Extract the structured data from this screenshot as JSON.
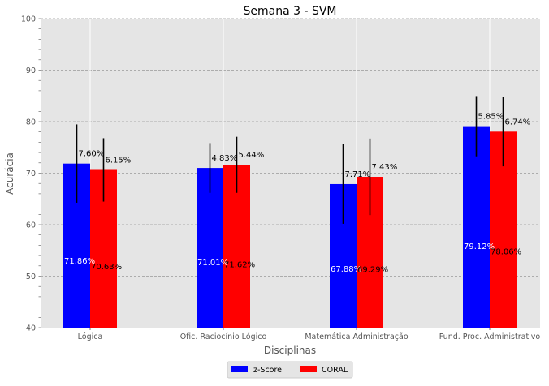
{
  "chart_data": {
    "type": "bar",
    "title": "Semana 3 - SVM",
    "xlabel": "Disciplinas",
    "ylabel": "Acurácia",
    "ylim": [
      40,
      100
    ],
    "yticks": [
      "40",
      "50",
      "60",
      "70",
      "80",
      "90",
      "100"
    ],
    "categories": [
      "Lógica",
      "Ofic. Raciocínio Lógico",
      "Matemática Administração",
      "Fund. Proc. Administrativo"
    ],
    "grid": true,
    "legend_position": "bottom-center",
    "background_color": "#e5e5e5",
    "series": [
      {
        "name": "z-Score",
        "color": "#0000ff",
        "values": [
          71.86,
          71.01,
          67.88,
          79.12
        ],
        "value_labels": [
          "71.86%",
          "71.01%",
          "67.88%",
          "79.12%"
        ],
        "errors": [
          7.6,
          4.83,
          7.71,
          5.85
        ],
        "error_labels": [
          "7.60%",
          "4.83%",
          "7.71%",
          "5.85%"
        ]
      },
      {
        "name": "CORAL",
        "color": "#ff0000",
        "values": [
          70.63,
          71.62,
          69.29,
          78.06
        ],
        "value_labels": [
          "70.63%",
          "71.62%",
          "69.29%",
          "78.06%"
        ],
        "errors": [
          6.15,
          5.44,
          7.43,
          6.74
        ],
        "error_labels": [
          "6.15%",
          "5.44%",
          "7.43%",
          "6.74%"
        ]
      }
    ]
  }
}
